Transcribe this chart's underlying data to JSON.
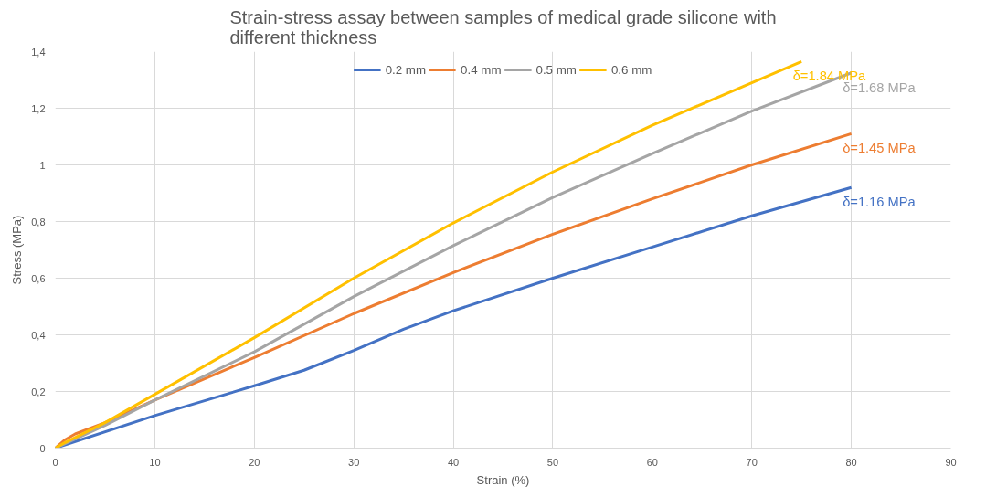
{
  "chart_data": {
    "type": "line",
    "title": "Strain-stress assay between samples of medical grade silicone with different thickness",
    "xlabel": "Strain (%)",
    "ylabel": "Stress (MPa)",
    "xlim": [
      0,
      90
    ],
    "xticks": [
      0,
      10,
      20,
      30,
      40,
      50,
      60,
      70,
      80,
      90
    ],
    "ylim": [
      0,
      1.4
    ],
    "yticks": [
      0,
      {
        "value": 0.2,
        "label": "0,2"
      },
      {
        "value": 0.4,
        "label": "0,4"
      },
      {
        "value": 0.6,
        "label": "0,6"
      },
      {
        "value": 0.8,
        "label": "0,8"
      },
      1,
      {
        "value": 1.2,
        "label": "1,2"
      },
      {
        "value": 1.4,
        "label": "1,4"
      }
    ],
    "grid": true,
    "legend": "top",
    "marker": "none",
    "line_style": "solid",
    "series": [
      {
        "name": "0.2 mm",
        "color": "#4472c4",
        "x": [
          0,
          10,
          20,
          25,
          30,
          35,
          40,
          50,
          60,
          70,
          80
        ],
        "values": [
          0,
          0.115,
          0.22,
          0.275,
          0.345,
          0.42,
          0.485,
          0.6,
          0.71,
          0.82,
          0.92
        ]
      },
      {
        "name": "0.4 mm",
        "color": "#ed7d31",
        "x": [
          0,
          1,
          2,
          5,
          10,
          20,
          30,
          40,
          50,
          60,
          70,
          80
        ],
        "values": [
          0,
          0.03,
          0.05,
          0.09,
          0.17,
          0.32,
          0.475,
          0.62,
          0.755,
          0.88,
          1.0,
          1.11
        ]
      },
      {
        "name": "0.5 mm",
        "color": "#a5a5a5",
        "x": [
          0,
          5,
          10,
          20,
          30,
          40,
          50,
          60,
          70,
          80
        ],
        "values": [
          0,
          0.08,
          0.17,
          0.34,
          0.535,
          0.715,
          0.885,
          1.04,
          1.19,
          1.325
        ]
      },
      {
        "name": "0.6 mm",
        "color": "#ffc000",
        "x": [
          0,
          1,
          5,
          10,
          20,
          30,
          40,
          50,
          60,
          70,
          75
        ],
        "values": [
          0,
          0.02,
          0.09,
          0.19,
          0.39,
          0.6,
          0.795,
          0.975,
          1.14,
          1.29,
          1.365
        ]
      }
    ],
    "annotations": [
      "δ=1.16 MPa",
      "δ=1.45 MPa",
      "δ=1.68 MPa",
      "δ=1.84 MPa"
    ]
  }
}
